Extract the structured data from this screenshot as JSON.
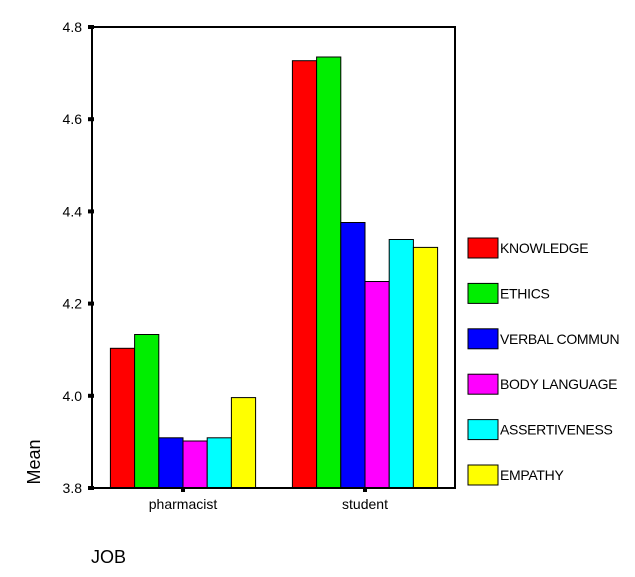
{
  "chart_data": {
    "type": "bar",
    "title": "",
    "xlabel": "JOB",
    "ylabel": "Mean",
    "ylim": [
      3.8,
      4.8
    ],
    "yticks": [
      "3.8",
      "4.0",
      "4.2",
      "4.4",
      "4.6",
      "4.8"
    ],
    "categories": [
      "pharmacist",
      "student"
    ],
    "series": [
      {
        "name": "KNOWLEDGE",
        "color": "#ff0000",
        "values": [
          4.103,
          4.727
        ]
      },
      {
        "name": "ETHICS",
        "color": "#00ee00",
        "values": [
          4.133,
          4.735
        ]
      },
      {
        "name": "VERBAL COMMUN",
        "color": "#0000ff",
        "values": [
          3.909,
          4.376
        ]
      },
      {
        "name": "BODY LANGUAGE",
        "color": "#ff00ff",
        "values": [
          3.902,
          4.248
        ]
      },
      {
        "name": "ASSERTIVENESS",
        "color": "#00ffff",
        "values": [
          3.909,
          4.339
        ]
      },
      {
        "name": "EMPATHY",
        "color": "#ffff00",
        "values": [
          3.996,
          4.322
        ]
      }
    ],
    "grid": false,
    "legend_position": "right"
  }
}
